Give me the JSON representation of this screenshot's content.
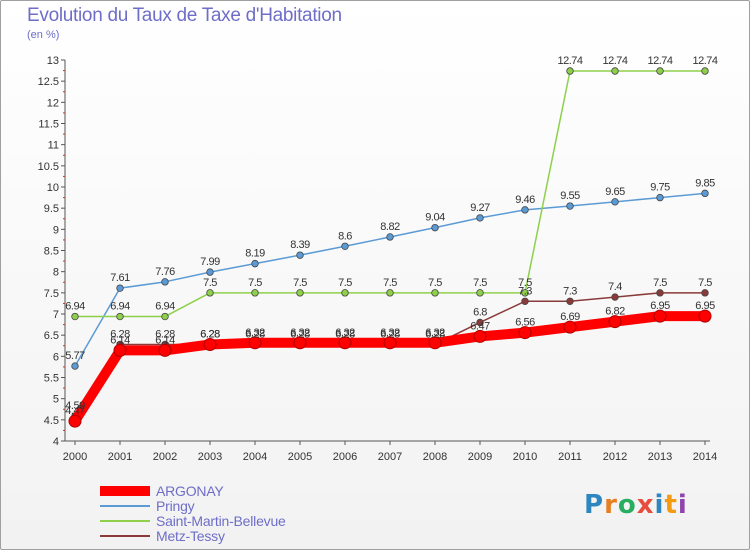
{
  "chart_data": {
    "type": "line",
    "title": "Evolution du Taux de Taxe d'Habitation",
    "subtitle": "(en %)",
    "categories": [
      "2000",
      "2001",
      "2002",
      "2003",
      "2004",
      "2005",
      "2006",
      "2007",
      "2008",
      "2009",
      "2010",
      "2011",
      "2012",
      "2013",
      "2014"
    ],
    "ylim": [
      4,
      13
    ],
    "yticks": [
      "4",
      "4.5",
      "5",
      "5.5",
      "6",
      "6.5",
      "7",
      "7.5",
      "8",
      "8.5",
      "9",
      "9.5",
      "10",
      "10.5",
      "11",
      "11.5",
      "12",
      "12.5",
      "13"
    ],
    "grid": false,
    "legend_position": "bottom-left",
    "series": [
      {
        "name": "ARGONAY",
        "color": "#ff0000",
        "values": [
          4.47,
          6.14,
          6.14,
          6.28,
          6.32,
          6.32,
          6.32,
          6.32,
          6.32,
          6.47,
          6.56,
          6.69,
          6.82,
          6.95,
          6.95
        ],
        "labels": [
          "4.47",
          "6.14",
          "6.14",
          "6.28",
          "6.32",
          "6.32",
          "6.32",
          "6.32",
          "6.32",
          "6.47",
          "6.56",
          "6.69",
          "6.82",
          "6.95",
          "6.95"
        ]
      },
      {
        "name": "Pringy",
        "color": "#5b9bd5",
        "values": [
          5.77,
          7.61,
          7.76,
          7.99,
          8.19,
          8.39,
          8.6,
          8.82,
          9.04,
          9.27,
          9.46,
          9.55,
          9.65,
          9.75,
          9.85
        ],
        "labels": [
          "5.77",
          "7.61",
          "7.76",
          "7.99",
          "8.19",
          "8.39",
          "8.6",
          "8.82",
          "9.04",
          "9.27",
          "9.46",
          "9.55",
          "9.65",
          "9.75",
          "9.85"
        ]
      },
      {
        "name": "Saint-Martin-Bellevue",
        "color": "#8ed04b",
        "values": [
          6.94,
          6.94,
          6.94,
          7.5,
          7.5,
          7.5,
          7.5,
          7.5,
          7.5,
          7.5,
          7.5,
          12.74,
          12.74,
          12.74,
          12.74
        ],
        "labels": [
          "6.94",
          "6.94",
          "6.94",
          "7.5",
          "7.5",
          "7.5",
          "7.5",
          "7.5",
          "7.5",
          "7.5",
          "7.5",
          "12.74",
          "12.74",
          "12.74",
          "12.74"
        ]
      },
      {
        "name": "Metz-Tessy",
        "color": "#8b3a3a",
        "values": [
          4.59,
          6.28,
          6.28,
          6.28,
          6.28,
          6.28,
          6.28,
          6.28,
          6.28,
          6.8,
          7.3,
          7.3,
          7.4,
          7.5,
          7.5
        ],
        "labels": [
          "4.59",
          "6.28",
          "6.28",
          "6.28",
          "6.28",
          "6.28",
          "6.28",
          "6.28",
          "6.28",
          "6.8",
          "7.3",
          "7.3",
          "7.4",
          "7.5",
          "7.5"
        ]
      }
    ]
  },
  "logo": {
    "text": "Proxiti"
  }
}
